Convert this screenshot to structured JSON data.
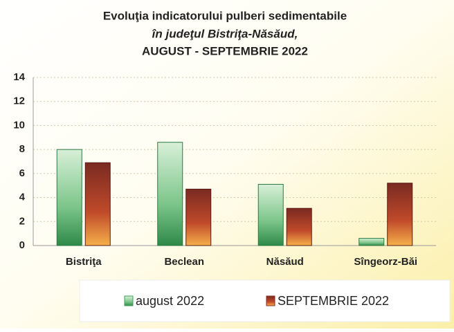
{
  "chart_data": {
    "type": "bar",
    "title": [
      "Evoluţia indicatorului pulberi sedimentabile",
      "în judeţul Bistriţa-Năsăud,",
      "AUGUST - SEPTEMBRIE 2022"
    ],
    "categories": [
      "Bistriţa",
      "Beclean",
      "Năsăud",
      "Sîngeorz-Băi"
    ],
    "series": [
      {
        "name": "august 2022",
        "color": "#3f9e5a",
        "values": [
          8.0,
          8.6,
          5.1,
          0.6
        ]
      },
      {
        "name": "SEPTEMBRIE 2022",
        "color": "#8a2e22",
        "values": [
          6.9,
          4.7,
          3.1,
          5.2
        ]
      }
    ],
    "ylim": [
      0,
      14
    ],
    "yticks": [
      0,
      2,
      4,
      6,
      8,
      10,
      12,
      14
    ],
    "grid": true
  }
}
